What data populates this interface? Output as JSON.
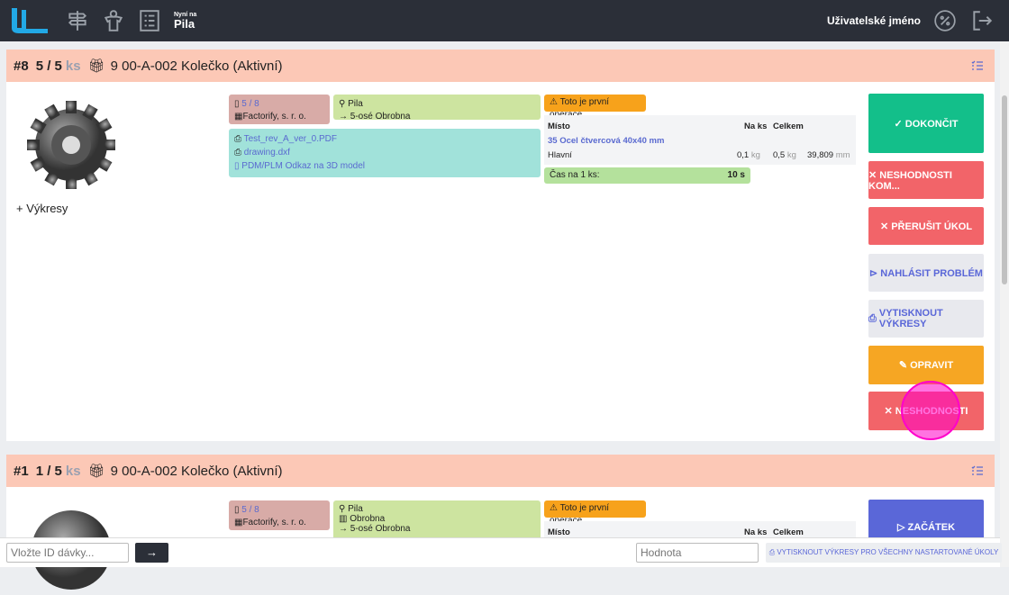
{
  "header": {
    "now_small": "Nyní na",
    "now_value": "Pila",
    "username": "Uživatelské jméno"
  },
  "cards": [
    {
      "id": "#8",
      "qty": "5 / 5",
      "unit": "ks",
      "title": "9 00-A-002 Kolečko (Aktivní)",
      "drawings_label": "+  Výkresy",
      "batch": "5 / 8",
      "company": "Factorify, s. r. o.",
      "location": "Pila",
      "target": "5-osé  Obrobna",
      "files": [
        "Test_rev_A_ver_0.PDF",
        "drawing.dxf",
        "PDM/PLM Odkaz na 3D model"
      ],
      "warning": "Toto je první operace.",
      "table": {
        "headers": [
          "Místo",
          "Na ks",
          "Celkem"
        ],
        "material": "35 Ocel čtvercová 40x40 mm",
        "row": {
          "name": "Hlavní",
          "per_piece": "0,1",
          "per_unit": "kg",
          "total": "0,5",
          "total_unit": "kg",
          "length": "39,809",
          "length_unit": "mm"
        }
      },
      "time_label": "Čas na 1 ks:",
      "time_value": "10 s",
      "buttons": [
        "✓ DOKONČIT",
        "✕ NESHODNOSTI KOM...",
        "✕ PŘERUŠIT ÚKOL",
        "⊳ NAHLÁSIT PROBLÉM",
        "VYTISKNOUT VÝKRESY",
        "OPRAVIT",
        "✕ NESHODNOSTI"
      ]
    },
    {
      "id": "#1",
      "qty": "1 / 5",
      "unit": "ks",
      "title": "9 00-A-002 Kolečko (Aktivní)",
      "batch": "5 / 8",
      "company": "Factorify, s. r. o.",
      "location": "Pila",
      "workplace": "Obrobna",
      "target": "5-osé  Obrobna",
      "warning": "Toto je první operace.",
      "table": {
        "headers": [
          "Místo",
          "Na ks",
          "Celkem"
        ]
      },
      "buttons": [
        "▷ ZAČÁTEK"
      ]
    }
  ],
  "footer": {
    "batch_placeholder": "Vložte ID dávky...",
    "go": "→",
    "value_placeholder": "Hodnota",
    "print_all": "VYTISKNOUT VÝKRESY PRO VŠECHNY NASTARTOVANÉ ÚKOLY"
  },
  "colors": {
    "header": "#2b2f38",
    "card_head": "#fcc8b6",
    "green": "#13bf8a",
    "red": "#f26469",
    "orange": "#f6a623",
    "blue": "#5a67d8"
  }
}
